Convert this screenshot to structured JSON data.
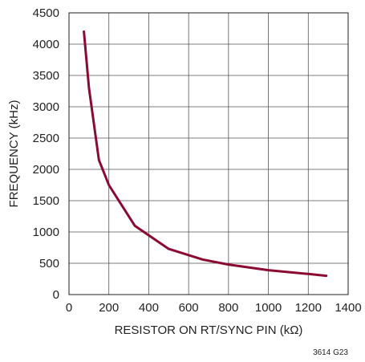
{
  "chart_data": {
    "type": "line",
    "title": "",
    "xlabel": "RESISTOR ON RT/SYNC PIN (kΩ)",
    "ylabel": "FREQUENCY (kHz)",
    "xlim": [
      0,
      1400
    ],
    "ylim": [
      0,
      4500
    ],
    "x_ticks": [
      0,
      200,
      400,
      600,
      800,
      1000,
      1200,
      1400
    ],
    "y_ticks": [
      0,
      500,
      1000,
      1500,
      2000,
      2500,
      3000,
      3500,
      4000,
      4500
    ],
    "grid": true,
    "line_color": "#8b0a32",
    "series": [
      {
        "x": [
          75,
          100,
          150,
          200,
          330,
          500,
          670,
          800,
          1000,
          1200,
          1290
        ],
        "y": [
          4200,
          3300,
          2150,
          1750,
          1100,
          730,
          560,
          480,
          390,
          330,
          300
        ]
      }
    ],
    "figure_id": "3614 G23"
  }
}
